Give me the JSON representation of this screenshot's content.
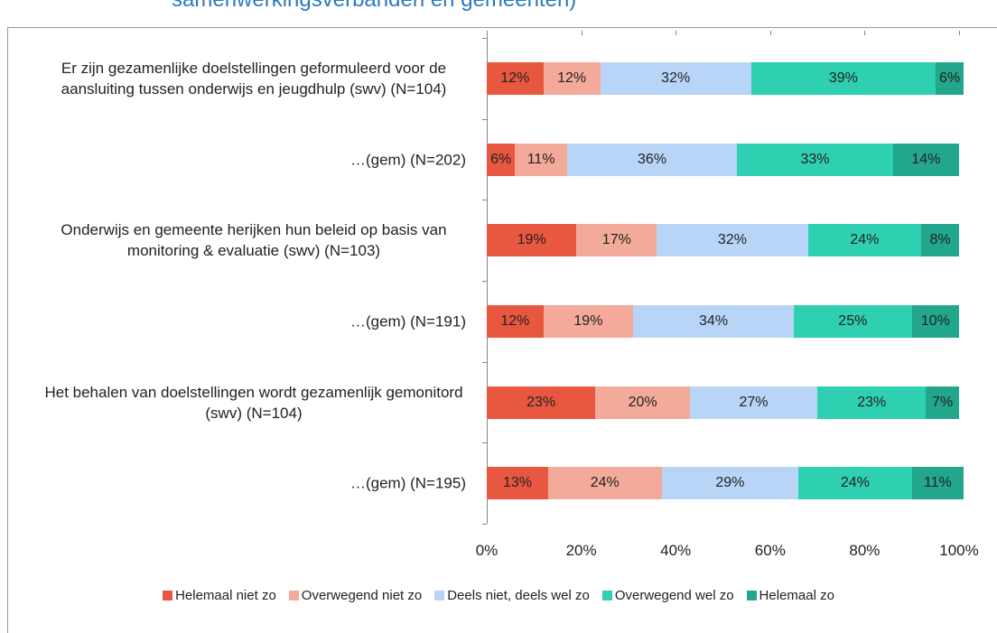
{
  "chart_data": {
    "type": "stacked-barh",
    "title": "samenwerkingsverbanden en gemeenten)",
    "categories": [
      "Er zijn gezamenlijke doelstellingen geformuleerd voor de aansluiting tussen onderwijs en jeugdhulp (swv) (N=104)",
      "…(gem) (N=202)",
      "Onderwijs en gemeente herijken hun beleid op basis van monitoring & evaluatie (swv) (N=103)",
      "…(gem) (N=191)",
      "Het behalen van doelstellingen wordt gezamenlijk gemonitord (swv) (N=104)",
      "…(gem) (N=195)"
    ],
    "series": [
      {
        "name": "Helemaal niet zo",
        "color": "#e8573f",
        "values": [
          12,
          6,
          19,
          12,
          23,
          13
        ],
        "value_labels": [
          "12%",
          "6%",
          "19%",
          "12%",
          "23%",
          "13%"
        ]
      },
      {
        "name": "Overwegend niet zo",
        "color": "#f4aa9a",
        "values": [
          12,
          11,
          17,
          19,
          20,
          24
        ],
        "value_labels": [
          "12%",
          "11%",
          "17%",
          "19%",
          "20%",
          "24%"
        ]
      },
      {
        "name": "Deels niet, deels wel zo",
        "color": "#b8d5f8",
        "values": [
          32,
          36,
          32,
          34,
          27,
          29
        ],
        "value_labels": [
          "32%",
          "36%",
          "32%",
          "34%",
          "27%",
          "29%"
        ]
      },
      {
        "name": "Overwegend wel zo",
        "color": "#2fcfb2",
        "values": [
          39,
          33,
          24,
          25,
          23,
          24
        ],
        "value_labels": [
          "39%",
          "33%",
          "24%",
          "25%",
          "23%",
          "24%"
        ]
      },
      {
        "name": "Helemaal zo",
        "color": "#22a68c",
        "values": [
          6,
          14,
          8,
          10,
          7,
          11
        ],
        "value_labels": [
          "6%",
          "14%",
          "8%",
          "10%",
          "7%",
          "11%"
        ]
      }
    ],
    "xlim": [
      0,
      100
    ],
    "xticks": [
      {
        "value": 0,
        "label": "0%"
      },
      {
        "value": 20,
        "label": "20%"
      },
      {
        "value": 40,
        "label": "40%"
      },
      {
        "value": 60,
        "label": "60%"
      },
      {
        "value": 80,
        "label": "80%"
      },
      {
        "value": 100,
        "label": "100%"
      }
    ],
    "legend": "bottom"
  }
}
